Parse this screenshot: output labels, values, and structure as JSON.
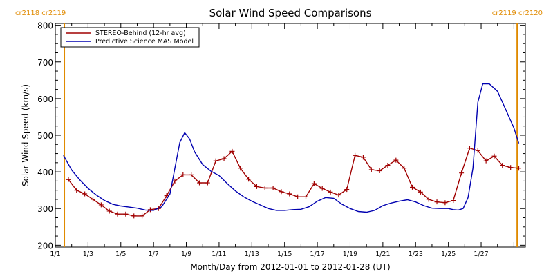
{
  "chart_data": {
    "type": "line",
    "title": "Solar Wind Speed Comparisons",
    "xlabel": "Month/Day from 2012-01-01 to 2012-01-28 (UT)",
    "ylabel": "Solar Wind Speed (km/s)",
    "xlim": [
      0,
      28.7
    ],
    "ylim": [
      195,
      805
    ],
    "xticks": [
      {
        "x": 0,
        "label": "1/1"
      },
      {
        "x": 2,
        "label": "1/3"
      },
      {
        "x": 4,
        "label": "1/5"
      },
      {
        "x": 6,
        "label": "1/7"
      },
      {
        "x": 8,
        "label": "1/9"
      },
      {
        "x": 10,
        "label": "1/11"
      },
      {
        "x": 12,
        "label": "1/13"
      },
      {
        "x": 14,
        "label": "1/15"
      },
      {
        "x": 16,
        "label": "1/17"
      },
      {
        "x": 18,
        "label": "1/19"
      },
      {
        "x": 20,
        "label": "1/21"
      },
      {
        "x": 22,
        "label": "1/23"
      },
      {
        "x": 24,
        "label": "1/25"
      },
      {
        "x": 26,
        "label": "1/27"
      }
    ],
    "yticks": [
      200,
      300,
      400,
      500,
      600,
      700,
      800
    ],
    "rotation_markers": [
      {
        "x": 0.55,
        "label": "cr2118 cr2119",
        "color": "#e08a00",
        "side": "left"
      },
      {
        "x": 28.2,
        "label": "cr2119 cr2120",
        "color": "#e08a00",
        "side": "right"
      }
    ],
    "legend": {
      "position": "top-left"
    },
    "series": [
      {
        "name": "STEREO-Behind (12-hr avg)",
        "color": "#a00000",
        "markers": true,
        "x": [
          0.8,
          1.3,
          1.8,
          2.3,
          2.8,
          3.3,
          3.8,
          4.3,
          4.8,
          5.3,
          5.8,
          6.3,
          6.8,
          7.3,
          7.8,
          8.3,
          8.8,
          9.3,
          9.8,
          10.3,
          10.8,
          11.3,
          11.8,
          12.3,
          12.8,
          13.3,
          13.8,
          14.3,
          14.8,
          15.3,
          15.8,
          16.3,
          16.8,
          17.3,
          17.8,
          18.3,
          18.8,
          19.3,
          19.8,
          20.3,
          20.8,
          21.3,
          21.8,
          22.3,
          22.8,
          23.3,
          23.8,
          24.3,
          24.8,
          25.3,
          25.8,
          26.3,
          26.8,
          27.3,
          27.8,
          28.3
        ],
        "values": [
          379,
          350,
          340,
          325,
          310,
          293,
          285,
          285,
          280,
          280,
          297,
          300,
          335,
          375,
          392,
          392,
          370,
          370,
          430,
          436,
          456,
          410,
          380,
          360,
          356,
          356,
          346,
          340,
          332,
          332,
          368,
          355,
          345,
          337,
          352,
          445,
          440,
          406,
          403,
          418,
          432,
          410,
          358,
          345,
          325,
          318,
          316,
          322,
          397,
          465,
          458,
          430,
          443,
          418,
          412,
          410
        ]
      },
      {
        "name": "Predictive Science MAS Model",
        "color": "#0000b0",
        "markers": false,
        "x": [
          0.5,
          1.0,
          1.5,
          2.0,
          2.5,
          3.0,
          3.5,
          4.0,
          4.5,
          5.0,
          5.5,
          6.0,
          6.5,
          7.0,
          7.3,
          7.6,
          7.9,
          8.2,
          8.5,
          9.0,
          9.5,
          10.0,
          10.5,
          11.0,
          11.5,
          12.0,
          12.5,
          13.0,
          13.5,
          14.0,
          14.5,
          15.0,
          15.5,
          16.0,
          16.5,
          17.0,
          17.5,
          18.0,
          18.5,
          19.0,
          19.5,
          20.0,
          20.5,
          21.0,
          21.5,
          22.0,
          22.5,
          23.0,
          23.5,
          24.0,
          24.3,
          24.6,
          24.9,
          25.2,
          25.5,
          25.8,
          26.1,
          26.5,
          27.0,
          27.5,
          28.0,
          28.3
        ],
        "values": [
          445,
          405,
          378,
          355,
          337,
          322,
          312,
          307,
          304,
          301,
          296,
          295,
          305,
          340,
          410,
          480,
          507,
          490,
          455,
          420,
          402,
          390,
          368,
          348,
          332,
          320,
          310,
          300,
          295,
          295,
          297,
          298,
          305,
          320,
          330,
          328,
          312,
          300,
          292,
          290,
          295,
          308,
          315,
          320,
          324,
          318,
          308,
          301,
          300,
          300,
          297,
          296,
          300,
          330,
          410,
          590,
          640,
          640,
          620,
          570,
          520,
          478
        ]
      }
    ]
  }
}
